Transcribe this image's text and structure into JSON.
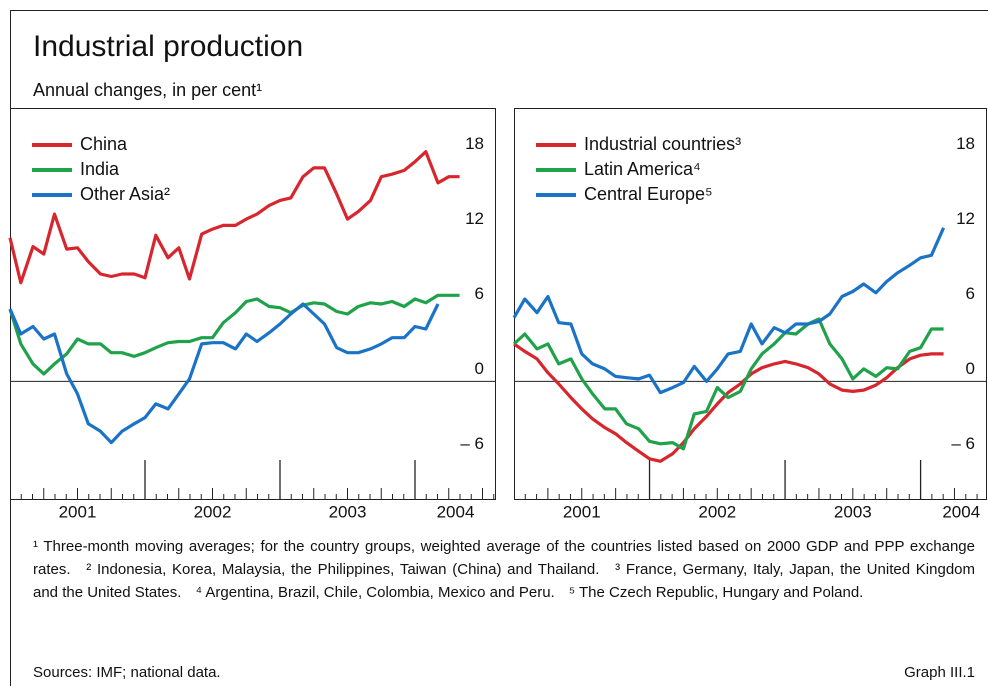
{
  "title": "Industrial production",
  "subtitle": "Annual changes, in per cent¹",
  "chart_data": [
    {
      "type": "line",
      "x": [
        2001,
        2001.08,
        2001.17,
        2001.25,
        2001.33,
        2001.42,
        2001.5,
        2001.58,
        2001.67,
        2001.75,
        2001.83,
        2001.92,
        2002,
        2002.08,
        2002.17,
        2002.25,
        2002.33,
        2002.42,
        2002.5,
        2002.58,
        2002.67,
        2002.75,
        2002.83,
        2002.92,
        2003,
        2003.08,
        2003.17,
        2003.25,
        2003.33,
        2003.42,
        2003.5,
        2003.58,
        2003.67,
        2003.75,
        2003.83,
        2003.92,
        2004,
        2004.08,
        2004.17,
        2004.25,
        2004.33
      ],
      "series": [
        {
          "name": "China",
          "color": "#d7262d",
          "values": [
            11.5,
            7.9,
            10.8,
            10.2,
            13.4,
            10.6,
            10.7,
            9.6,
            8.6,
            8.4,
            8.6,
            8.6,
            8.3,
            11.7,
            9.9,
            10.7,
            8.2,
            11.8,
            12.2,
            12.5,
            12.5,
            13.0,
            13.4,
            14.1,
            14.5,
            14.7,
            16.4,
            17.1,
            17.1,
            15.0,
            13.0,
            13.6,
            14.5,
            16.4,
            16.6,
            16.9,
            17.6,
            18.4,
            15.9,
            16.4,
            16.4
          ]
        },
        {
          "name": "India",
          "color": "#1fa24a",
          "values": [
            5.8,
            3.0,
            1.4,
            0.6,
            1.4,
            2.2,
            3.4,
            3.0,
            3.0,
            2.3,
            2.3,
            2.0,
            2.3,
            2.7,
            3.1,
            3.2,
            3.2,
            3.5,
            3.5,
            4.7,
            5.5,
            6.4,
            6.6,
            6.0,
            5.9,
            5.5,
            6.1,
            6.3,
            6.2,
            5.6,
            5.4,
            6.0,
            6.3,
            6.2,
            6.4,
            6.0,
            6.6,
            6.3,
            6.9,
            6.9,
            6.9
          ]
        },
        {
          "name": "Other Asia²",
          "color": "#1a73c6",
          "values": [
            5.8,
            3.8,
            4.4,
            3.4,
            3.8,
            0.6,
            -1.0,
            -3.4,
            -4.0,
            -4.9,
            -4.0,
            -3.4,
            -2.9,
            -1.8,
            -2.2,
            -1.0,
            0.2,
            3.0,
            3.1,
            3.1,
            2.6,
            3.8,
            3.2,
            3.9,
            4.6,
            5.4,
            6.2,
            5.4,
            4.6,
            2.7,
            2.3,
            2.3,
            2.6,
            3.0,
            3.5,
            3.5,
            4.4,
            4.2,
            6.2,
            null,
            null
          ]
        }
      ],
      "xlim": [
        2001,
        2004.6
      ],
      "xticks": [
        {
          "value": 2001.5,
          "label": "2001"
        },
        {
          "value": 2002.5,
          "label": "2002"
        },
        {
          "value": 2003.5,
          "label": "2003"
        },
        {
          "value": 2004.3,
          "label": "2004"
        }
      ],
      "ylim": [
        -9.5,
        21.9
      ],
      "yticks": [
        {
          "value": -6,
          "label": "– 6"
        },
        0,
        6,
        12,
        18
      ]
    },
    {
      "type": "line",
      "x": [
        2001,
        2001.08,
        2001.17,
        2001.25,
        2001.33,
        2001.42,
        2001.5,
        2001.58,
        2001.67,
        2001.75,
        2001.83,
        2001.92,
        2002,
        2002.08,
        2002.17,
        2002.25,
        2002.33,
        2002.42,
        2002.5,
        2002.58,
        2002.67,
        2002.75,
        2002.83,
        2002.92,
        2003,
        2003.08,
        2003.17,
        2003.25,
        2003.33,
        2003.42,
        2003.5,
        2003.58,
        2003.67,
        2003.75,
        2003.83,
        2003.92,
        2004,
        2004.08,
        2004.17
      ],
      "series": [
        {
          "name": "Industrial countries³",
          "color": "#d7262d",
          "values": [
            3.0,
            2.4,
            1.8,
            0.7,
            -0.2,
            -1.3,
            -2.2,
            -3.0,
            -3.7,
            -4.2,
            -4.9,
            -5.6,
            -6.2,
            -6.4,
            -5.8,
            -4.9,
            -3.8,
            -2.8,
            -1.8,
            -0.9,
            -0.2,
            0.6,
            1.1,
            1.4,
            1.6,
            1.4,
            1.1,
            0.6,
            -0.2,
            -0.7,
            -0.8,
            -0.7,
            -0.3,
            0.3,
            1.1,
            1.8,
            2.1,
            2.2,
            2.2
          ]
        },
        {
          "name": "Latin America⁴",
          "color": "#1fa24a",
          "values": [
            3.0,
            3.8,
            2.6,
            3.0,
            1.4,
            1.8,
            0.2,
            -1.0,
            -2.2,
            -2.2,
            -3.4,
            -3.8,
            -4.8,
            -5.0,
            -4.9,
            -5.4,
            -2.6,
            -2.4,
            -0.5,
            -1.3,
            -0.8,
            1.0,
            2.2,
            3.0,
            3.9,
            3.8,
            4.6,
            5.0,
            3.0,
            1.8,
            0.2,
            1.0,
            0.4,
            1.1,
            1.0,
            2.4,
            2.7,
            4.2,
            4.2
          ]
        },
        {
          "name": "Central Europe⁵",
          "color": "#1a73c6",
          "values": [
            5.1,
            6.6,
            5.5,
            6.8,
            4.7,
            4.6,
            2.2,
            1.4,
            1.0,
            0.4,
            0.3,
            0.2,
            0.5,
            -0.9,
            -0.5,
            -0.1,
            1.2,
            0.0,
            1.0,
            2.2,
            2.4,
            4.6,
            3.0,
            4.3,
            3.9,
            4.6,
            4.6,
            4.8,
            5.4,
            6.8,
            7.2,
            7.8,
            7.1,
            8.0,
            8.7,
            9.3,
            9.9,
            10.1,
            12.3
          ]
        }
      ],
      "xlim": [
        2001,
        2004.49
      ],
      "xticks": [
        {
          "value": 2001.5,
          "label": "2001"
        },
        {
          "value": 2002.5,
          "label": "2002"
        },
        {
          "value": 2003.5,
          "label": "2003"
        },
        {
          "value": 2004.3,
          "label": "2004"
        }
      ],
      "ylim": [
        -9.5,
        21.9
      ],
      "yticks": [
        {
          "value": -6,
          "label": "– 6"
        },
        0,
        6,
        12,
        18
      ]
    }
  ],
  "footnotes": [
    "¹ Three-month moving averages; for the country groups, weighted average of the countries listed based on 2000 GDP and PPP exchange rates.",
    "² Indonesia, Korea, Malaysia, the Philippines, Taiwan (China) and Thailand.",
    "³ France, Germany, Italy, Japan, the United Kingdom and the United States.",
    "⁴ Argentina, Brazil, Chile, Colombia, Mexico and Peru.",
    "⁵ The Czech Republic, Hungary and Poland."
  ],
  "sources": "Sources: IMF; national data.",
  "graph_label": "Graph III.1"
}
